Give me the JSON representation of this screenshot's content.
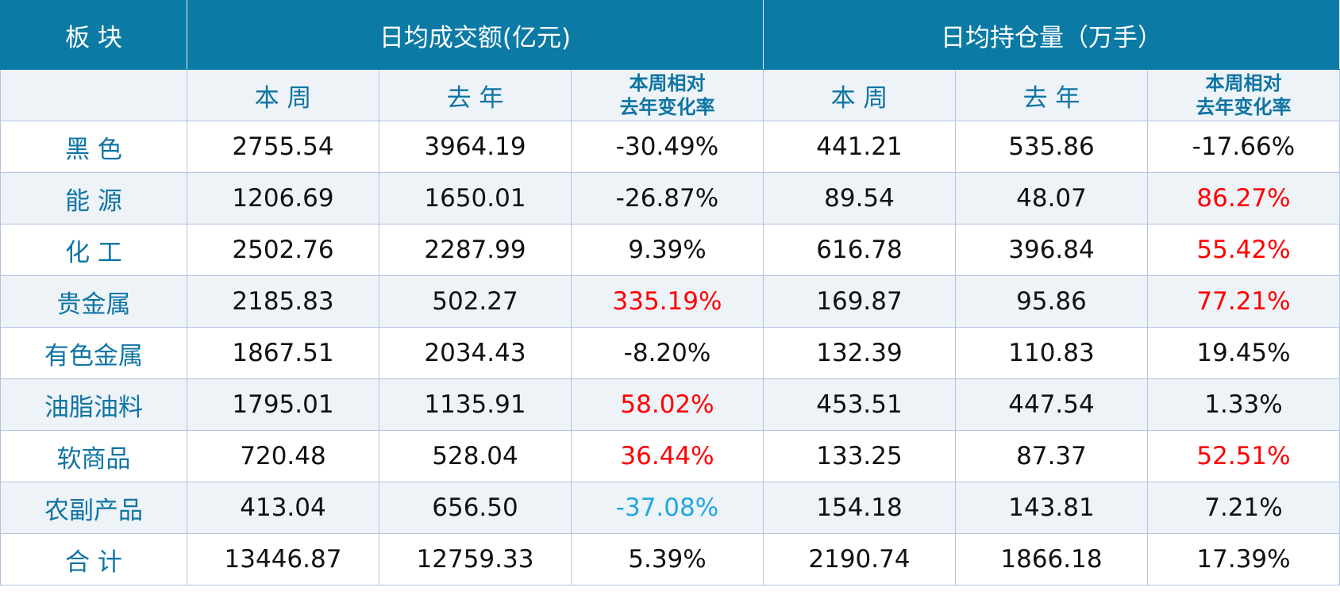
{
  "header": {
    "corner": "板 块",
    "groups": [
      "日均成交额(亿元)",
      "日均持仓量（万手）"
    ]
  },
  "subheader": [
    "本 周",
    "去 年",
    [
      "本周相对",
      "去年变化率"
    ],
    "本 周",
    "去 年",
    [
      "本周相对",
      "去年变化率"
    ]
  ],
  "rows": [
    {
      "label": "黑 色",
      "cells": [
        "2755.54",
        "3964.19",
        "-30.49%",
        "441.21",
        "535.86",
        "-17.66%"
      ]
    },
    {
      "label": "能 源",
      "cells": [
        "1206.69",
        "1650.01",
        "-26.87%",
        "89.54",
        "48.07",
        {
          "text": "86.27%",
          "color": "#ff0000"
        }
      ]
    },
    {
      "label": "化 工",
      "cells": [
        "2502.76",
        "2287.99",
        "9.39%",
        "616.78",
        "396.84",
        {
          "text": "55.42%",
          "color": "#ff0000"
        }
      ]
    },
    {
      "label": "贵金属",
      "cells": [
        "2185.83",
        "502.27",
        {
          "text": "335.19%",
          "color": "#ff0000"
        },
        "169.87",
        "95.86",
        {
          "text": "77.21%",
          "color": "#ff0000"
        }
      ]
    },
    {
      "label": "有色金属",
      "cells": [
        "1867.51",
        "2034.43",
        "-8.20%",
        "132.39",
        "110.83",
        "19.45%"
      ]
    },
    {
      "label": "油脂油料",
      "cells": [
        "1795.01",
        "1135.91",
        {
          "text": "58.02%",
          "color": "#ff0000"
        },
        "453.51",
        "447.54",
        "1.33%"
      ]
    },
    {
      "label": "软商品",
      "cells": [
        "720.48",
        "528.04",
        {
          "text": "36.44%",
          "color": "#ff0000"
        },
        "133.25",
        "87.37",
        {
          "text": "52.51%",
          "color": "#ff0000"
        }
      ]
    },
    {
      "label": "农副产品",
      "cells": [
        "413.04",
        "656.50",
        {
          "text": "-37.08%",
          "color": "#20a8e0"
        },
        "154.18",
        "143.81",
        "7.21%"
      ]
    },
    {
      "label": "合 计",
      "cells": [
        "13446.87",
        "12759.33",
        "5.39%",
        "2190.74",
        "1866.18",
        "17.39%"
      ]
    }
  ]
}
